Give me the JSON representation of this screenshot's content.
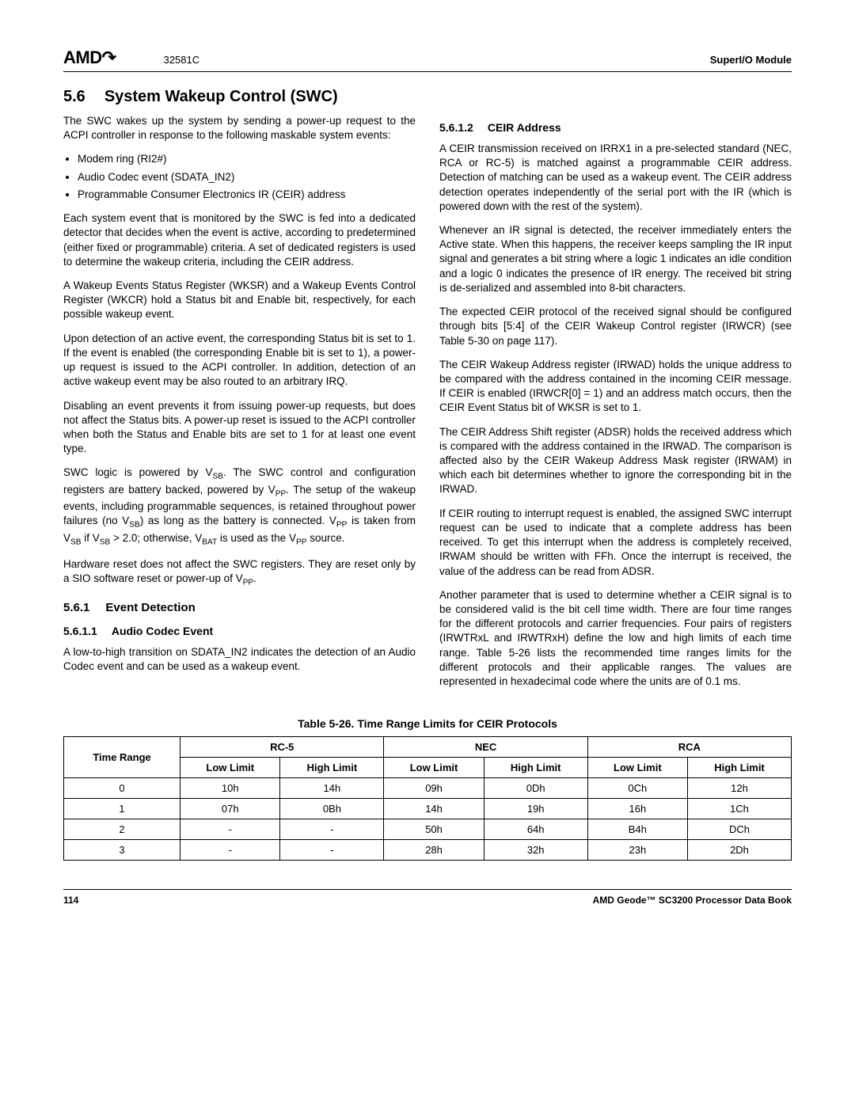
{
  "header": {
    "logo_base": "AMD",
    "logo_arrow": "↷",
    "docnum": "32581C",
    "module": "SuperI/O Module"
  },
  "section": {
    "num": "5.6",
    "title": "System Wakeup Control (SWC)"
  },
  "left_col": {
    "intro": "The SWC wakes up the system by sending a power-up request to the ACPI controller in response to the following maskable system events:",
    "bullets": [
      "Modem ring (RI2#)",
      "Audio Codec event (SDATA_IN2)",
      "Programmable Consumer Electronics IR (CEIR) address"
    ],
    "p2": "Each system event that is monitored by the SWC is fed into a dedicated detector that decides when the event is active, according to predetermined (either fixed or programmable) criteria. A set of dedicated registers is used to determine the wakeup criteria, including the CEIR address.",
    "p3": "A Wakeup Events Status Register (WKSR) and a Wakeup Events Control Register (WKCR) hold a Status bit and Enable bit, respectively, for each possible wakeup event.",
    "p4": "Upon detection of an active event, the corresponding Status bit is set to 1. If the event is enabled (the corresponding Enable bit is set to 1), a power-up request is issued to the ACPI controller. In addition, detection of an active wakeup event may be also routed to an arbitrary IRQ.",
    "p5": "Disabling an event prevents it from issuing power-up requests, but does not affect the Status bits. A power-up reset is issued to the ACPI controller when both the Status and Enable bits are set to 1 for at least one event type.",
    "p6_a": "SWC logic is powered by V",
    "p6_b": ". The SWC control and configuration registers are battery backed, powered by V",
    "p6_c": ". The setup of the wakeup events, including programmable sequences, is retained throughout power failures (no V",
    "p6_d": ") as long as the battery is connected. V",
    "p6_e": " is taken from V",
    "p6_f": " if V",
    "p6_g": " > 2.0; otherwise, V",
    "p6_h": " is used as the V",
    "p6_i": " source.",
    "p7_a": "Hardware reset does not affect the SWC registers. They are reset only by a SIO software reset or power-up of V",
    "p7_b": ".",
    "h2_num": "5.6.1",
    "h2_title": "Event Detection",
    "h3_num": "5.6.1.1",
    "h3_title": "Audio Codec Event",
    "p8": "A low-to-high transition on SDATA_IN2 indicates the detection of an Audio Codec event and can be used as a wakeup event.",
    "sub_sb": "SB",
    "sub_pp": "PP",
    "sub_bat": "BAT"
  },
  "right_col": {
    "h3_num": "5.6.1.2",
    "h3_title": "CEIR Address",
    "p1": "A CEIR transmission received on IRRX1 in a pre-selected standard (NEC, RCA or RC-5) is matched against a programmable CEIR address. Detection of matching can be used as a wakeup event. The CEIR address detection operates independently of the serial port with the IR (which is powered down with the rest of the system).",
    "p2": "Whenever an IR signal is detected, the receiver immediately enters the Active state. When this happens, the receiver keeps sampling the IR input signal and generates a bit string where a logic 1 indicates an idle condition and a logic 0 indicates the presence of IR energy. The received bit string is de-serialized and assembled into 8-bit characters.",
    "p3": "The expected CEIR protocol of the received signal should be configured through bits [5:4] of the CEIR Wakeup Control register (IRWCR) (see Table 5-30 on page 117).",
    "p4": "The CEIR Wakeup Address register (IRWAD) holds the unique address to be compared with the address contained in the incoming CEIR message. If CEIR is enabled (IRWCR[0] = 1) and an address match occurs, then the CEIR Event Status bit of WKSR is set to 1.",
    "p5": "The CEIR Address Shift register (ADSR) holds the received address which is compared with the address contained in the IRWAD. The comparison is affected also by the CEIR Wakeup Address Mask register (IRWAM) in which each bit determines whether to ignore the corresponding bit in the IRWAD.",
    "p6": "If CEIR routing to interrupt request is enabled, the assigned SWC interrupt request can be used to indicate that a complete address has been received. To get this interrupt when the address is completely received, IRWAM should be written with FFh. Once the interrupt is received, the value of the address can be read from ADSR.",
    "p7": "Another parameter that is used to determine whether a CEIR signal is to be considered valid is the bit cell time width. There are four time ranges for the different protocols and carrier frequencies. Four pairs of registers (IRWTRxL and IRWTRxH) define the low and high limits of each time range. Table 5-26 lists the recommended time ranges limits for the different protocols and their applicable ranges. The values are represented in hexadecimal code where the units are of 0.1 ms."
  },
  "table": {
    "caption": "Table 5-26.  Time Range Limits for CEIR Protocols",
    "head_time": "Time Range",
    "protocols": [
      "RC-5",
      "NEC",
      "RCA"
    ],
    "sub_low": "Low Limit",
    "sub_high": "High Limit",
    "rows": [
      {
        "r": "0",
        "c": [
          "10h",
          "14h",
          "09h",
          "0Dh",
          "0Ch",
          "12h"
        ]
      },
      {
        "r": "1",
        "c": [
          "07h",
          "0Bh",
          "14h",
          "19h",
          "16h",
          "1Ch"
        ]
      },
      {
        "r": "2",
        "c": [
          "-",
          "-",
          "50h",
          "64h",
          "B4h",
          "DCh"
        ]
      },
      {
        "r": "3",
        "c": [
          "-",
          "-",
          "28h",
          "32h",
          "23h",
          "2Dh"
        ]
      }
    ]
  },
  "footer": {
    "page": "114",
    "book": "AMD Geode™ SC3200 Processor Data Book"
  }
}
